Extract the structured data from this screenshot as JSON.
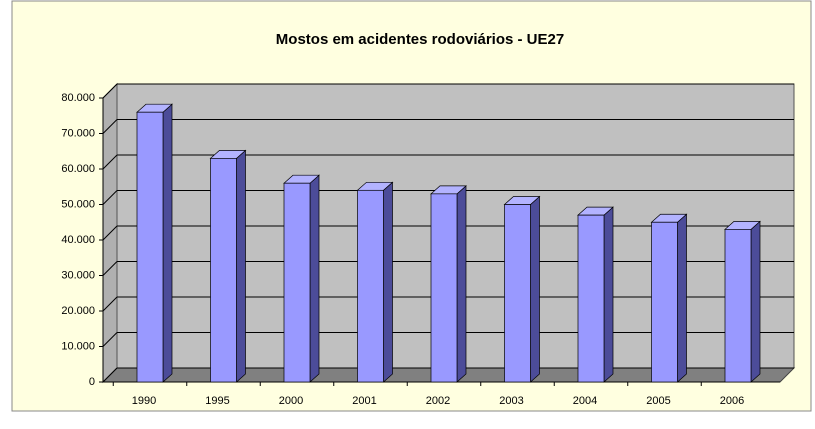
{
  "chart_data": {
    "type": "bar3d",
    "title": "Mostos em acidentes rodoviários - UE27",
    "categories": [
      "1990",
      "1995",
      "2000",
      "2001",
      "2002",
      "2003",
      "2004",
      "2005",
      "2006"
    ],
    "values": [
      76000,
      63000,
      56000,
      54000,
      53000,
      50000,
      47000,
      45000,
      43000
    ],
    "color": "#9999ff",
    "ylim": [
      0,
      80000
    ],
    "yticks": [
      0,
      {
        "value": 10000,
        "label": "10.000"
      },
      {
        "value": 20000,
        "label": "20.000"
      },
      {
        "value": 30000,
        "label": "30.000"
      },
      {
        "value": 40000,
        "label": "40.000"
      },
      {
        "value": 50000,
        "label": "50.000"
      },
      {
        "value": 60000,
        "label": "60.000"
      },
      {
        "value": 70000,
        "label": "70.000"
      },
      {
        "value": 80000,
        "label": "80.000"
      }
    ],
    "grid": true
  }
}
